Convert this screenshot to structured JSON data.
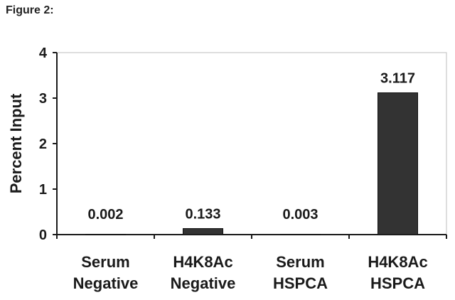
{
  "figure_label": "Figure 2:",
  "chart_data": {
    "type": "bar",
    "title": "",
    "xlabel": "",
    "ylabel": "Percent Input",
    "ylim": [
      0,
      4
    ],
    "yticks": [
      0,
      1,
      2,
      3,
      4
    ],
    "grid": false,
    "legend": "none",
    "bar_color": "#333333",
    "categories": [
      [
        "Serum",
        "Negative"
      ],
      [
        "H4K8Ac",
        "Negative"
      ],
      [
        "Serum",
        "HSPCA"
      ],
      [
        "H4K8Ac",
        "HSPCA"
      ]
    ],
    "values": [
      0.002,
      0.133,
      0.003,
      3.117
    ],
    "data_labels": [
      "0.002",
      "0.133",
      "0.003",
      "3.117"
    ]
  }
}
